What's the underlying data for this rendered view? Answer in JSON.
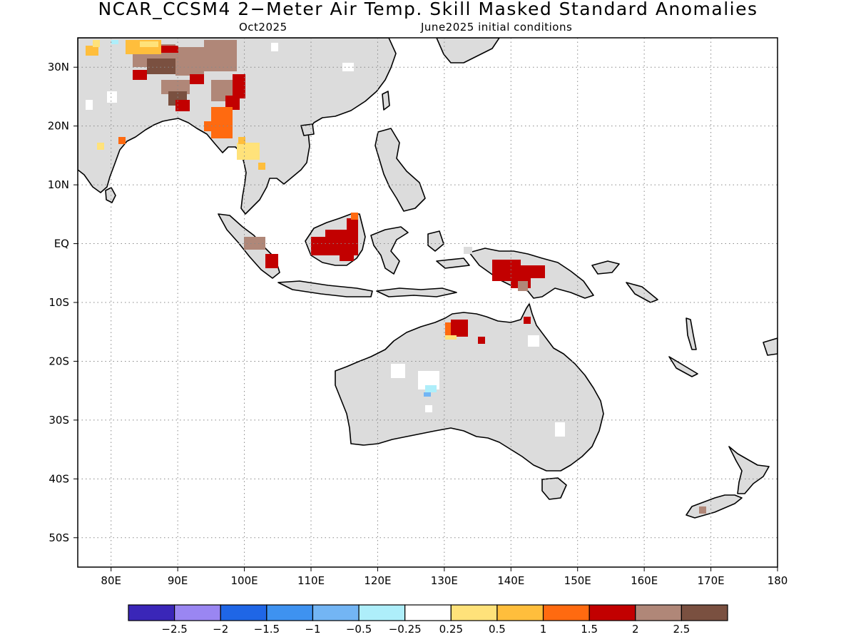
{
  "title": "NCAR_CCSM4 2−Meter Air Temp. Skill Masked Standard Anomalies",
  "subtitle_left": "Oct2025",
  "subtitle_right": "June2025 initial conditions",
  "map": {
    "lon_range": [
      75,
      180
    ],
    "lat_range": [
      -55,
      35
    ],
    "x_ticks": [
      "80E",
      "90E",
      "100E",
      "110E",
      "120E",
      "130E",
      "140E",
      "150E",
      "160E",
      "170E",
      "180"
    ],
    "x_tick_values": [
      80,
      90,
      100,
      110,
      120,
      130,
      140,
      150,
      160,
      170,
      180
    ],
    "y_ticks": [
      "30N",
      "20N",
      "10N",
      "EQ",
      "10S",
      "20S",
      "30S",
      "40S",
      "50S"
    ],
    "y_tick_values": [
      30,
      20,
      10,
      0,
      -10,
      -20,
      -30,
      -40,
      -50
    ],
    "grid": "dotted"
  },
  "colors": {
    "land_no_skill": "#dcdcdc",
    "ocean": "#ffffff",
    "coast": "#000000"
  },
  "colorbar": {
    "labels": [
      "−2.5",
      "−2",
      "−1.5",
      "−1",
      "−0.5",
      "−0.25",
      "0.25",
      "0.5",
      "1",
      "1.5",
      "2",
      "2.5"
    ],
    "colors": [
      "#3a26b8",
      "#9a86f2",
      "#1f66e6",
      "#3e92f0",
      "#73b5f4",
      "#aeeefa",
      "#ffffff",
      "#ffe27a",
      "#ffbe3c",
      "#ff6a10",
      "#c20000",
      "#b08778",
      "#7a5040"
    ]
  }
}
